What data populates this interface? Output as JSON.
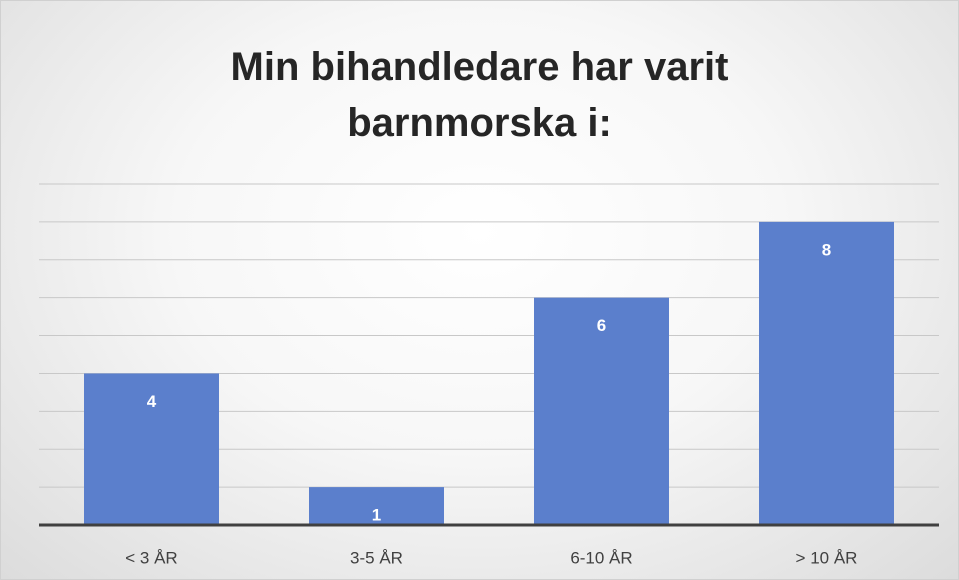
{
  "chart_data": {
    "type": "bar",
    "title": "Min bihandledare har varit barnmorska i:",
    "categories": [
      "< 3 ÅR",
      "3-5 ÅR",
      "6-10 ÅR",
      "> 10 ÅR"
    ],
    "values": [
      4,
      1,
      6,
      8
    ],
    "color": "#5b7fcc",
    "ylim": [
      0,
      9
    ],
    "yticks": [
      0,
      1,
      2,
      3,
      4,
      5,
      6,
      7,
      8,
      9
    ],
    "grid": true,
    "ytick_labels": false,
    "data_labels": true
  }
}
